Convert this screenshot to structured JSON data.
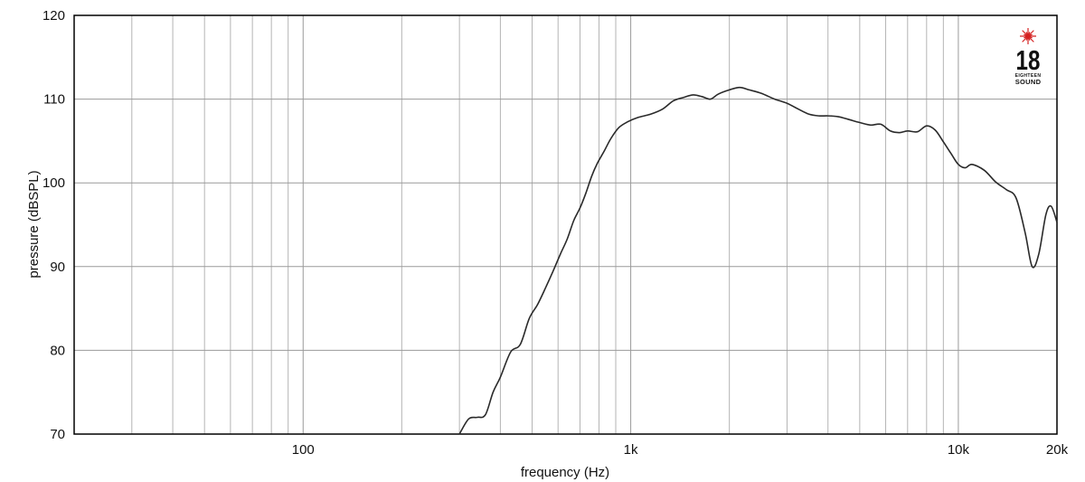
{
  "chart_data": {
    "type": "line",
    "xlabel": "frequency (Hz)",
    "ylabel": "pressure (dBSPL)",
    "xscale": "log",
    "xlim": [
      20,
      20000
    ],
    "ylim": [
      70,
      120
    ],
    "grid": true,
    "xticks": [
      {
        "value": 100,
        "label": "100"
      },
      {
        "value": 1000,
        "label": "1k"
      },
      {
        "value": 10000,
        "label": "10k"
      },
      {
        "value": 20000,
        "label": "20k"
      }
    ],
    "yticks": [
      {
        "value": 70,
        "label": "70"
      },
      {
        "value": 80,
        "label": "80"
      },
      {
        "value": 90,
        "label": "90"
      },
      {
        "value": 100,
        "label": "100"
      },
      {
        "value": 110,
        "label": "110"
      },
      {
        "value": 120,
        "label": "120"
      }
    ],
    "series": [
      {
        "color": "#2a2a2a",
        "x": [
          300,
          320,
          340,
          360,
          380,
          400,
          430,
          460,
          490,
          520,
          550,
          580,
          610,
          640,
          670,
          700,
          730,
          760,
          790,
          830,
          870,
          920,
          980,
          1050,
          1150,
          1250,
          1350,
          1450,
          1550,
          1650,
          1750,
          1850,
          2000,
          2150,
          2300,
          2500,
          2750,
          3000,
          3250,
          3500,
          3750,
          4000,
          4300,
          4600,
          5000,
          5400,
          5800,
          6200,
          6600,
          7000,
          7500,
          8000,
          8500,
          9000,
          9500,
          10000,
          10500,
          11000,
          12000,
          13000,
          14000,
          15000,
          16000,
          16800,
          17600,
          18500,
          19200,
          20000
        ],
        "y": [
          70.0,
          71.8,
          72.0,
          72.3,
          75.0,
          76.8,
          79.8,
          80.7,
          83.8,
          85.5,
          87.5,
          89.5,
          91.5,
          93.3,
          95.5,
          97.0,
          98.8,
          100.8,
          102.3,
          103.8,
          105.3,
          106.6,
          107.3,
          107.8,
          108.2,
          108.8,
          109.8,
          110.2,
          110.5,
          110.3,
          110.0,
          110.6,
          111.1,
          111.4,
          111.1,
          110.7,
          110.0,
          109.5,
          108.8,
          108.2,
          108.0,
          108.0,
          107.9,
          107.6,
          107.2,
          106.9,
          107.0,
          106.2,
          106.0,
          106.2,
          106.1,
          106.8,
          106.3,
          104.9,
          103.5,
          102.2,
          101.8,
          102.2,
          101.5,
          100.1,
          99.2,
          98.2,
          94.0,
          90.0,
          91.5,
          96.2,
          97.2,
          95.3
        ]
      }
    ]
  },
  "logo": {
    "number": "18",
    "tagline": "EIGHTEEN",
    "word": "SOUND",
    "star_color": "#d42020"
  }
}
